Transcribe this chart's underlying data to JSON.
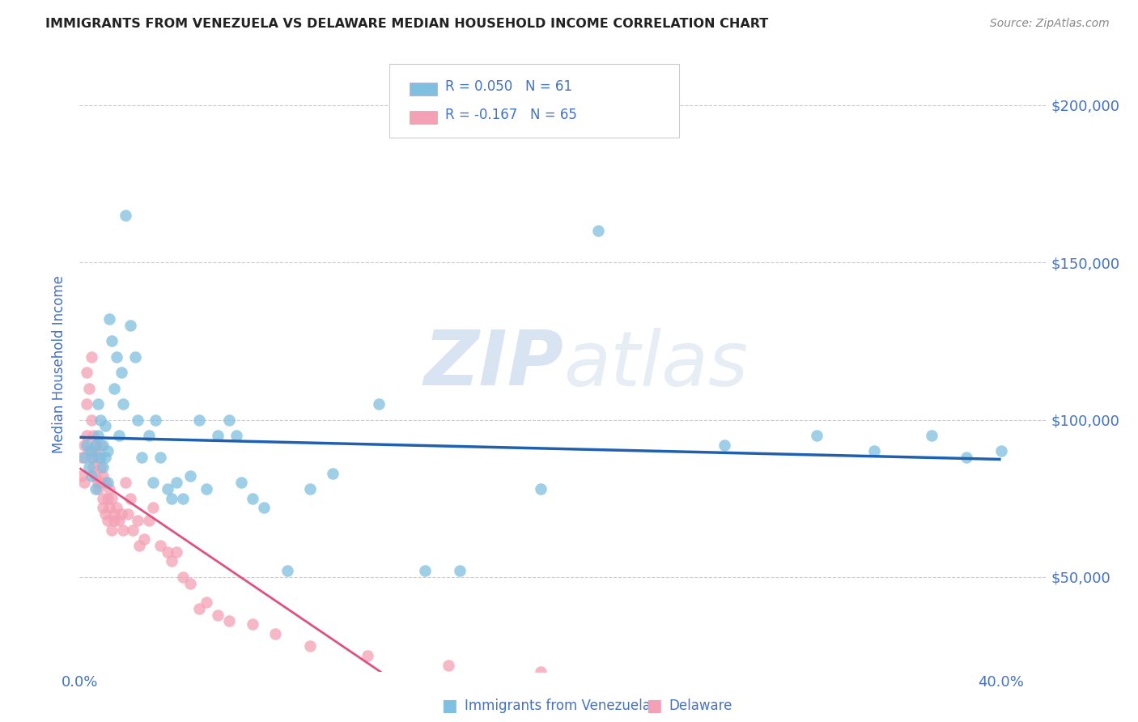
{
  "title": "IMMIGRANTS FROM VENEZUELA VS DELAWARE MEDIAN HOUSEHOLD INCOME CORRELATION CHART",
  "source": "Source: ZipAtlas.com",
  "ylabel": "Median Household Income",
  "xlim": [
    0.0,
    0.42
  ],
  "ylim": [
    20000,
    215000
  ],
  "xticks": [
    0.0,
    0.05,
    0.1,
    0.15,
    0.2,
    0.25,
    0.3,
    0.35,
    0.4
  ],
  "xtick_labels": [
    "0.0%",
    "",
    "",
    "",
    "",
    "",
    "",
    "",
    "40.0%"
  ],
  "ytick_labels": [
    "$50,000",
    "$100,000",
    "$150,000",
    "$200,000"
  ],
  "ytick_values": [
    50000,
    100000,
    150000,
    200000
  ],
  "watermark": "ZIPatlas",
  "legend_blue_label": "Immigrants from Venezuela",
  "legend_pink_label": "Delaware",
  "blue_color": "#7fbfdf",
  "pink_color": "#f4a0b5",
  "line_blue_color": "#2060b0",
  "line_pink_color": "#e05080",
  "background_color": "#ffffff",
  "grid_color": "#cccccc",
  "title_color": "#222222",
  "axis_label_color": "#4472c4",
  "tick_label_color": "#4472c4",
  "blue_scatter_x": [
    0.002,
    0.003,
    0.004,
    0.005,
    0.005,
    0.006,
    0.007,
    0.007,
    0.008,
    0.008,
    0.009,
    0.009,
    0.01,
    0.01,
    0.011,
    0.011,
    0.012,
    0.012,
    0.013,
    0.014,
    0.015,
    0.016,
    0.017,
    0.018,
    0.019,
    0.02,
    0.022,
    0.024,
    0.025,
    0.027,
    0.03,
    0.032,
    0.033,
    0.035,
    0.038,
    0.04,
    0.042,
    0.045,
    0.048,
    0.052,
    0.055,
    0.06,
    0.065,
    0.068,
    0.07,
    0.075,
    0.08,
    0.09,
    0.1,
    0.11,
    0.13,
    0.15,
    0.165,
    0.2,
    0.225,
    0.28,
    0.32,
    0.345,
    0.37,
    0.385,
    0.4
  ],
  "blue_scatter_y": [
    88000,
    92000,
    85000,
    90000,
    82000,
    88000,
    92000,
    78000,
    95000,
    105000,
    88000,
    100000,
    92000,
    85000,
    98000,
    88000,
    90000,
    80000,
    132000,
    125000,
    110000,
    120000,
    95000,
    115000,
    105000,
    165000,
    130000,
    120000,
    100000,
    88000,
    95000,
    80000,
    100000,
    88000,
    78000,
    75000,
    80000,
    75000,
    82000,
    100000,
    78000,
    95000,
    100000,
    95000,
    80000,
    75000,
    72000,
    52000,
    78000,
    83000,
    105000,
    52000,
    52000,
    78000,
    160000,
    92000,
    95000,
    90000,
    95000,
    88000,
    90000
  ],
  "pink_scatter_x": [
    0.001,
    0.001,
    0.002,
    0.002,
    0.003,
    0.003,
    0.003,
    0.004,
    0.004,
    0.005,
    0.005,
    0.005,
    0.006,
    0.006,
    0.007,
    0.007,
    0.007,
    0.008,
    0.008,
    0.008,
    0.009,
    0.009,
    0.009,
    0.01,
    0.01,
    0.01,
    0.011,
    0.011,
    0.012,
    0.012,
    0.013,
    0.013,
    0.014,
    0.014,
    0.015,
    0.015,
    0.016,
    0.017,
    0.018,
    0.019,
    0.02,
    0.021,
    0.022,
    0.023,
    0.025,
    0.026,
    0.028,
    0.03,
    0.032,
    0.035,
    0.038,
    0.04,
    0.042,
    0.045,
    0.048,
    0.052,
    0.055,
    0.06,
    0.065,
    0.075,
    0.085,
    0.1,
    0.125,
    0.16,
    0.2
  ],
  "pink_scatter_y": [
    88000,
    82000,
    92000,
    80000,
    105000,
    115000,
    95000,
    110000,
    90000,
    120000,
    100000,
    88000,
    95000,
    85000,
    92000,
    82000,
    90000,
    88000,
    80000,
    78000,
    85000,
    92000,
    80000,
    82000,
    75000,
    72000,
    80000,
    70000,
    75000,
    68000,
    78000,
    72000,
    75000,
    65000,
    70000,
    68000,
    72000,
    68000,
    70000,
    65000,
    80000,
    70000,
    75000,
    65000,
    68000,
    60000,
    62000,
    68000,
    72000,
    60000,
    58000,
    55000,
    58000,
    50000,
    48000,
    40000,
    42000,
    38000,
    36000,
    35000,
    32000,
    28000,
    25000,
    22000,
    20000
  ]
}
